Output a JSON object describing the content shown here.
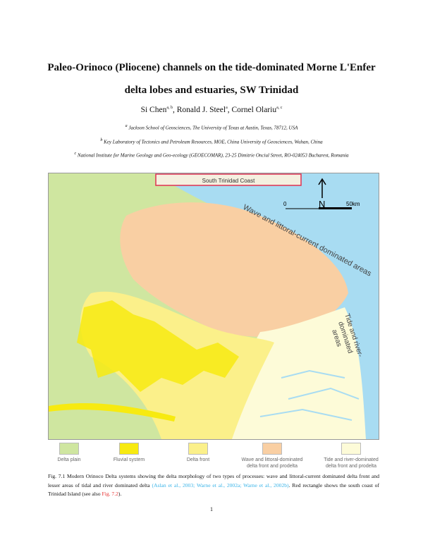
{
  "title_line1": "Paleo-Orinoco (Pliocene) channels on the tide-dominated Morne L'Enfer",
  "title_line2": "delta lobes and estuaries, SW Trinidad",
  "authors": [
    {
      "name": "Si Chen",
      "sup": "a, b"
    },
    {
      "name": "Ronald J. Steel",
      "sup": "a"
    },
    {
      "name": "Cornel Olariu",
      "sup": "a, c"
    }
  ],
  "affiliations": [
    {
      "sup": "a",
      "text": "Jackson School of Geosciences, The University of Texas at Austin, Texas, 78712, USA"
    },
    {
      "sup": "b",
      "text": "Key Laboratory of Tectonics and Petroleum Resources, MOE, China University of Geosciences, Wuhan, China"
    },
    {
      "sup": "c",
      "text": "National Institute for Marine Geology and Geo-ecology (GEOECOMAR), 23-25 Dimitrie Onciul Street, RO-024053 Bucharest, Romania"
    }
  ],
  "map": {
    "coast_label": "South Trinidad Coast",
    "wave_label": "Wave and littoral-current dominated areas",
    "tide_label_1": "Tide and river-",
    "tide_label_2": "dominated",
    "tide_label_3": "areas",
    "north": "N",
    "scale_start": "0",
    "scale_end": "50km",
    "colors": {
      "sea": "#a8dcf2",
      "delta_plain": "#cfe6a0",
      "fluvial": "#f7ea10",
      "delta_front": "#fbf08a",
      "wave": "#f9cfa3",
      "tide": "#fdfbd8",
      "box": "#e03050"
    }
  },
  "legend": [
    {
      "label": "Delta plain",
      "label2": "",
      "color": "#cfe6a0"
    },
    {
      "label": "Fluvial system",
      "label2": "",
      "color": "#f7ea10"
    },
    {
      "label": "Delta front",
      "label2": "",
      "color": "#fbf08a"
    },
    {
      "label": "Wave and littoral-dominated",
      "label2": "delta front and prodelta",
      "color": "#f9cfa3"
    },
    {
      "label": "Tide and river-dominated",
      "label2": "delta front and prodelta",
      "color": "#fdfbd8"
    }
  ],
  "caption": {
    "text": "Fig. 7.1 Modern Orinoco Delta systems showing the delta morphology of two types of processes: wave and littoral-current dominated delta front and lesser areas of tidal and river dominated delta ",
    "citation": "(Aslan et al., 2003; Warne et al., 2002a; Warne et al., 2002b)",
    "text2": ". Red rectangle shows the south coast of Trinidad Island (see also ",
    "fig_ref": "Fig. 7.2",
    "text3": ")."
  },
  "page_number": "1"
}
